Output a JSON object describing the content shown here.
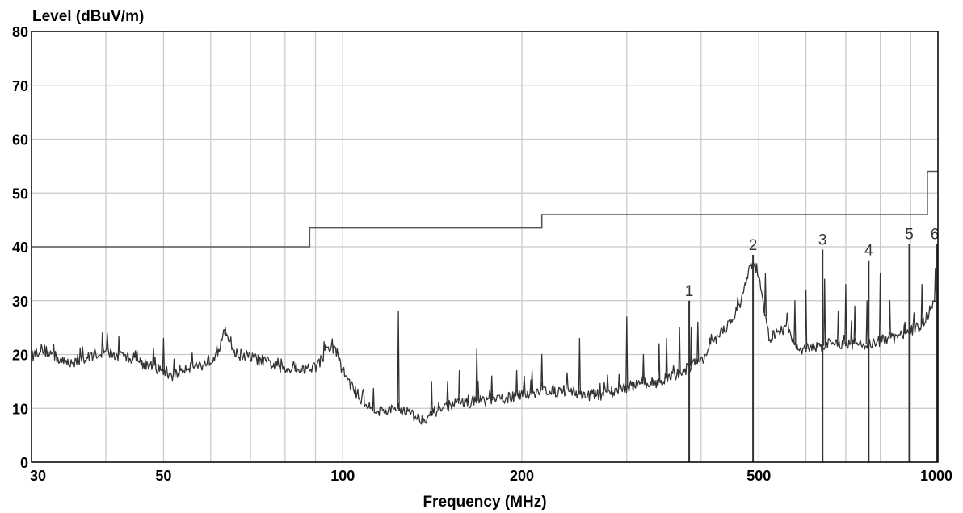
{
  "chart_data": {
    "type": "line",
    "title": "",
    "ylabel": "Level (dBuV/m)",
    "xlabel": "Frequency (MHz)",
    "x_scale": "log",
    "xlim": [
      30,
      1000
    ],
    "ylim": [
      0,
      80
    ],
    "grid": true,
    "x_ticks": [
      {
        "value": 30,
        "label": "30"
      },
      {
        "value": 40,
        "label": ""
      },
      {
        "value": 50,
        "label": "50"
      },
      {
        "value": 60,
        "label": ""
      },
      {
        "value": 70,
        "label": ""
      },
      {
        "value": 80,
        "label": ""
      },
      {
        "value": 90,
        "label": ""
      },
      {
        "value": 100,
        "label": "100"
      },
      {
        "value": 200,
        "label": "200"
      },
      {
        "value": 300,
        "label": ""
      },
      {
        "value": 400,
        "label": ""
      },
      {
        "value": 500,
        "label": "500"
      },
      {
        "value": 600,
        "label": ""
      },
      {
        "value": 700,
        "label": ""
      },
      {
        "value": 800,
        "label": ""
      },
      {
        "value": 900,
        "label": ""
      },
      {
        "value": 1000,
        "label": "1000"
      }
    ],
    "y_ticks": [
      {
        "value": 0,
        "label": "0"
      },
      {
        "value": 10,
        "label": "10"
      },
      {
        "value": 20,
        "label": "20"
      },
      {
        "value": 30,
        "label": "30"
      },
      {
        "value": 40,
        "label": "40"
      },
      {
        "value": 50,
        "label": "50"
      },
      {
        "value": 60,
        "label": "60"
      },
      {
        "value": 70,
        "label": "70"
      },
      {
        "value": 80,
        "label": "80"
      }
    ],
    "limit_line": {
      "x": [
        30,
        88,
        88,
        216,
        216,
        960,
        960,
        1000
      ],
      "y": [
        40,
        40,
        43.5,
        43.5,
        46,
        46,
        54,
        54
      ],
      "color": "#555555"
    },
    "spectrum": {
      "color": "#333333",
      "x": [
        30,
        31,
        32,
        33,
        34,
        35,
        36,
        37,
        38,
        40,
        42,
        44,
        46,
        48,
        50,
        52,
        54,
        56,
        58,
        60,
        62,
        63,
        64,
        65,
        66,
        68,
        70,
        72,
        75,
        78,
        80,
        83,
        86,
        88,
        90,
        92,
        94,
        96,
        98,
        100,
        105,
        110,
        115,
        120,
        125,
        130,
        135,
        140,
        145,
        150,
        160,
        170,
        180,
        190,
        200,
        210,
        220,
        230,
        240,
        250,
        260,
        270,
        280,
        290,
        300,
        320,
        340,
        360,
        380,
        400,
        420,
        440,
        460,
        470,
        480,
        490,
        500,
        520,
        540,
        560,
        580,
        600,
        620,
        640,
        660,
        680,
        700,
        720,
        740,
        760,
        780,
        800,
        820,
        840,
        860,
        880,
        900,
        920,
        940,
        960,
        980,
        1000
      ],
      "y": [
        19.5,
        21,
        20.5,
        19.5,
        18.5,
        18.5,
        19,
        19,
        20,
        20.5,
        19.5,
        19.5,
        18.5,
        17.5,
        17,
        16,
        17.5,
        18,
        18,
        19,
        21,
        23.5,
        24,
        22,
        20,
        20,
        19.5,
        19,
        18.5,
        17.5,
        17,
        18,
        17,
        18,
        17.5,
        19,
        20.5,
        21.5,
        20,
        17,
        13,
        10.5,
        9.5,
        9.5,
        10,
        9,
        8,
        8.5,
        10,
        10.5,
        11,
        11.5,
        11.5,
        12,
        12.5,
        13,
        13.5,
        13,
        13.5,
        12.5,
        12.5,
        12.5,
        13,
        13.5,
        14,
        14.5,
        15,
        16,
        17.5,
        19,
        22,
        25,
        28,
        31,
        35,
        37,
        35,
        23,
        24,
        25,
        21,
        21,
        21.5,
        21.5,
        22,
        22,
        22,
        22,
        22,
        22,
        22,
        22.5,
        23,
        23,
        23.5,
        24,
        24.5,
        25,
        25.5,
        27,
        29,
        31
      ]
    },
    "spikes": [
      {
        "x": 50,
        "y": 23
      },
      {
        "x": 63.5,
        "y": 25
      },
      {
        "x": 124,
        "y": 28
      },
      {
        "x": 141,
        "y": 15
      },
      {
        "x": 150,
        "y": 15
      },
      {
        "x": 157,
        "y": 17
      },
      {
        "x": 168,
        "y": 21
      },
      {
        "x": 178,
        "y": 16
      },
      {
        "x": 196,
        "y": 17
      },
      {
        "x": 208,
        "y": 17
      },
      {
        "x": 216,
        "y": 20
      },
      {
        "x": 250,
        "y": 23
      },
      {
        "x": 300,
        "y": 27
      },
      {
        "x": 320,
        "y": 20
      },
      {
        "x": 340,
        "y": 22
      },
      {
        "x": 350,
        "y": 23
      },
      {
        "x": 368,
        "y": 25
      },
      {
        "x": 385,
        "y": 25
      },
      {
        "x": 395,
        "y": 26
      },
      {
        "x": 513,
        "y": 35
      },
      {
        "x": 575,
        "y": 30
      },
      {
        "x": 600,
        "y": 32
      },
      {
        "x": 645,
        "y": 34
      },
      {
        "x": 680,
        "y": 28
      },
      {
        "x": 700,
        "y": 33
      },
      {
        "x": 725,
        "y": 29
      },
      {
        "x": 760,
        "y": 30
      },
      {
        "x": 800,
        "y": 35
      },
      {
        "x": 830,
        "y": 30
      },
      {
        "x": 880,
        "y": 26
      },
      {
        "x": 940,
        "y": 33
      },
      {
        "x": 990,
        "y": 36
      }
    ],
    "markers": [
      {
        "label": "1",
        "x": 382,
        "y": 30
      },
      {
        "label": "2",
        "x": 489,
        "y": 38.5
      },
      {
        "label": "3",
        "x": 640,
        "y": 39.5
      },
      {
        "label": "4",
        "x": 765,
        "y": 37.5
      },
      {
        "label": "5",
        "x": 895,
        "y": 40.5
      },
      {
        "label": "6",
        "x": 995,
        "y": 40.5
      }
    ]
  }
}
